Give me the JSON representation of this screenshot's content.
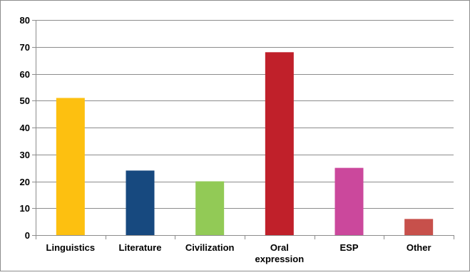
{
  "chart_data": {
    "type": "bar",
    "title": "",
    "xlabel": "",
    "ylabel": "",
    "categories": [
      "Linguistics",
      "Literature",
      "Civilization",
      "Oral expression",
      "ESP",
      "Other"
    ],
    "category_lines": [
      [
        "Linguistics"
      ],
      [
        "Literature"
      ],
      [
        "Civilization"
      ],
      [
        "Oral",
        "expression"
      ],
      [
        "ESP"
      ],
      [
        "Other"
      ]
    ],
    "values": [
      51,
      24,
      20,
      68,
      25,
      6
    ],
    "bar_colors": [
      "#FDC010",
      "#17497F",
      "#92CA56",
      "#C0202A",
      "#CB489C",
      "#C7504B"
    ],
    "ylim": [
      0,
      80
    ],
    "yticks": [
      0,
      10,
      20,
      30,
      40,
      50,
      60,
      70,
      80
    ],
    "grid": true,
    "legend": "none"
  }
}
